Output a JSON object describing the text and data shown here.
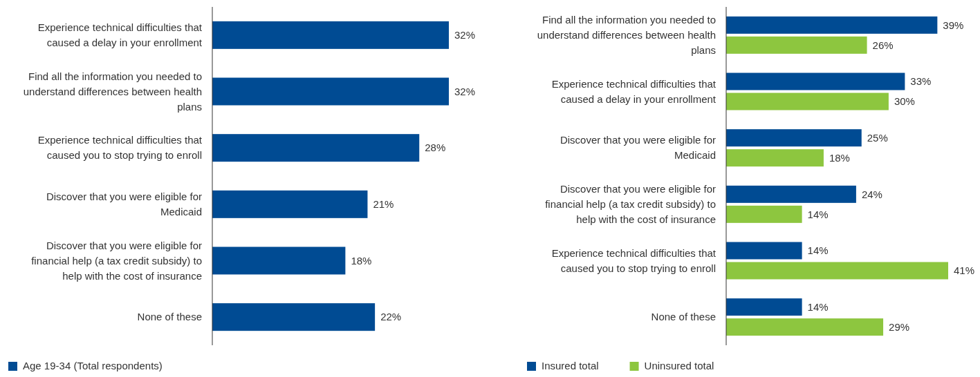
{
  "chart_data": [
    {
      "type": "bar",
      "orientation": "horizontal",
      "categories": [
        "Experience technical difficulties that caused a delay in your enrollment",
        "Find all the information you needed to understand differences between health plans",
        "Experience technical difficulties that caused you to stop trying to enroll",
        "Discover that you were eligible for Medicaid",
        "Discover that you were eligible for financial help (a tax credit subsidy) to help with the cost of insurance",
        "None of these"
      ],
      "series": [
        {
          "name": "Age 19-34 (Total respondents)",
          "color": "#004b93",
          "values": [
            32,
            32,
            28,
            21,
            18,
            22
          ],
          "value_labels": [
            "32%",
            "32%",
            "28%",
            "21%",
            "18%",
            "22%"
          ]
        }
      ],
      "legend": "bottom"
    },
    {
      "type": "bar",
      "orientation": "horizontal",
      "categories": [
        "Find all the information you needed to understand differences between health plans",
        "Experience technical difficulties that caused a delay in your enrollment",
        "Discover that you were eligible for Medicaid",
        "Discover that you were eligible for financial help (a tax credit subsidy) to help with the cost of insurance",
        "Experience technical difficulties that caused you to stop trying to enroll",
        "None of these"
      ],
      "series": [
        {
          "name": "Insured total",
          "color": "#004b93",
          "values": [
            39,
            33,
            25,
            24,
            14,
            14
          ],
          "value_labels": [
            "39%",
            "33%",
            "25%",
            "24%",
            "14%",
            "14%"
          ]
        },
        {
          "name": "Uninsured total",
          "color": "#8dc63f",
          "values": [
            26,
            30,
            18,
            14,
            41,
            29
          ],
          "value_labels": [
            "26%",
            "30%",
            "18%",
            "14%",
            "41%",
            "29%"
          ]
        }
      ],
      "legend": "bottom"
    }
  ]
}
